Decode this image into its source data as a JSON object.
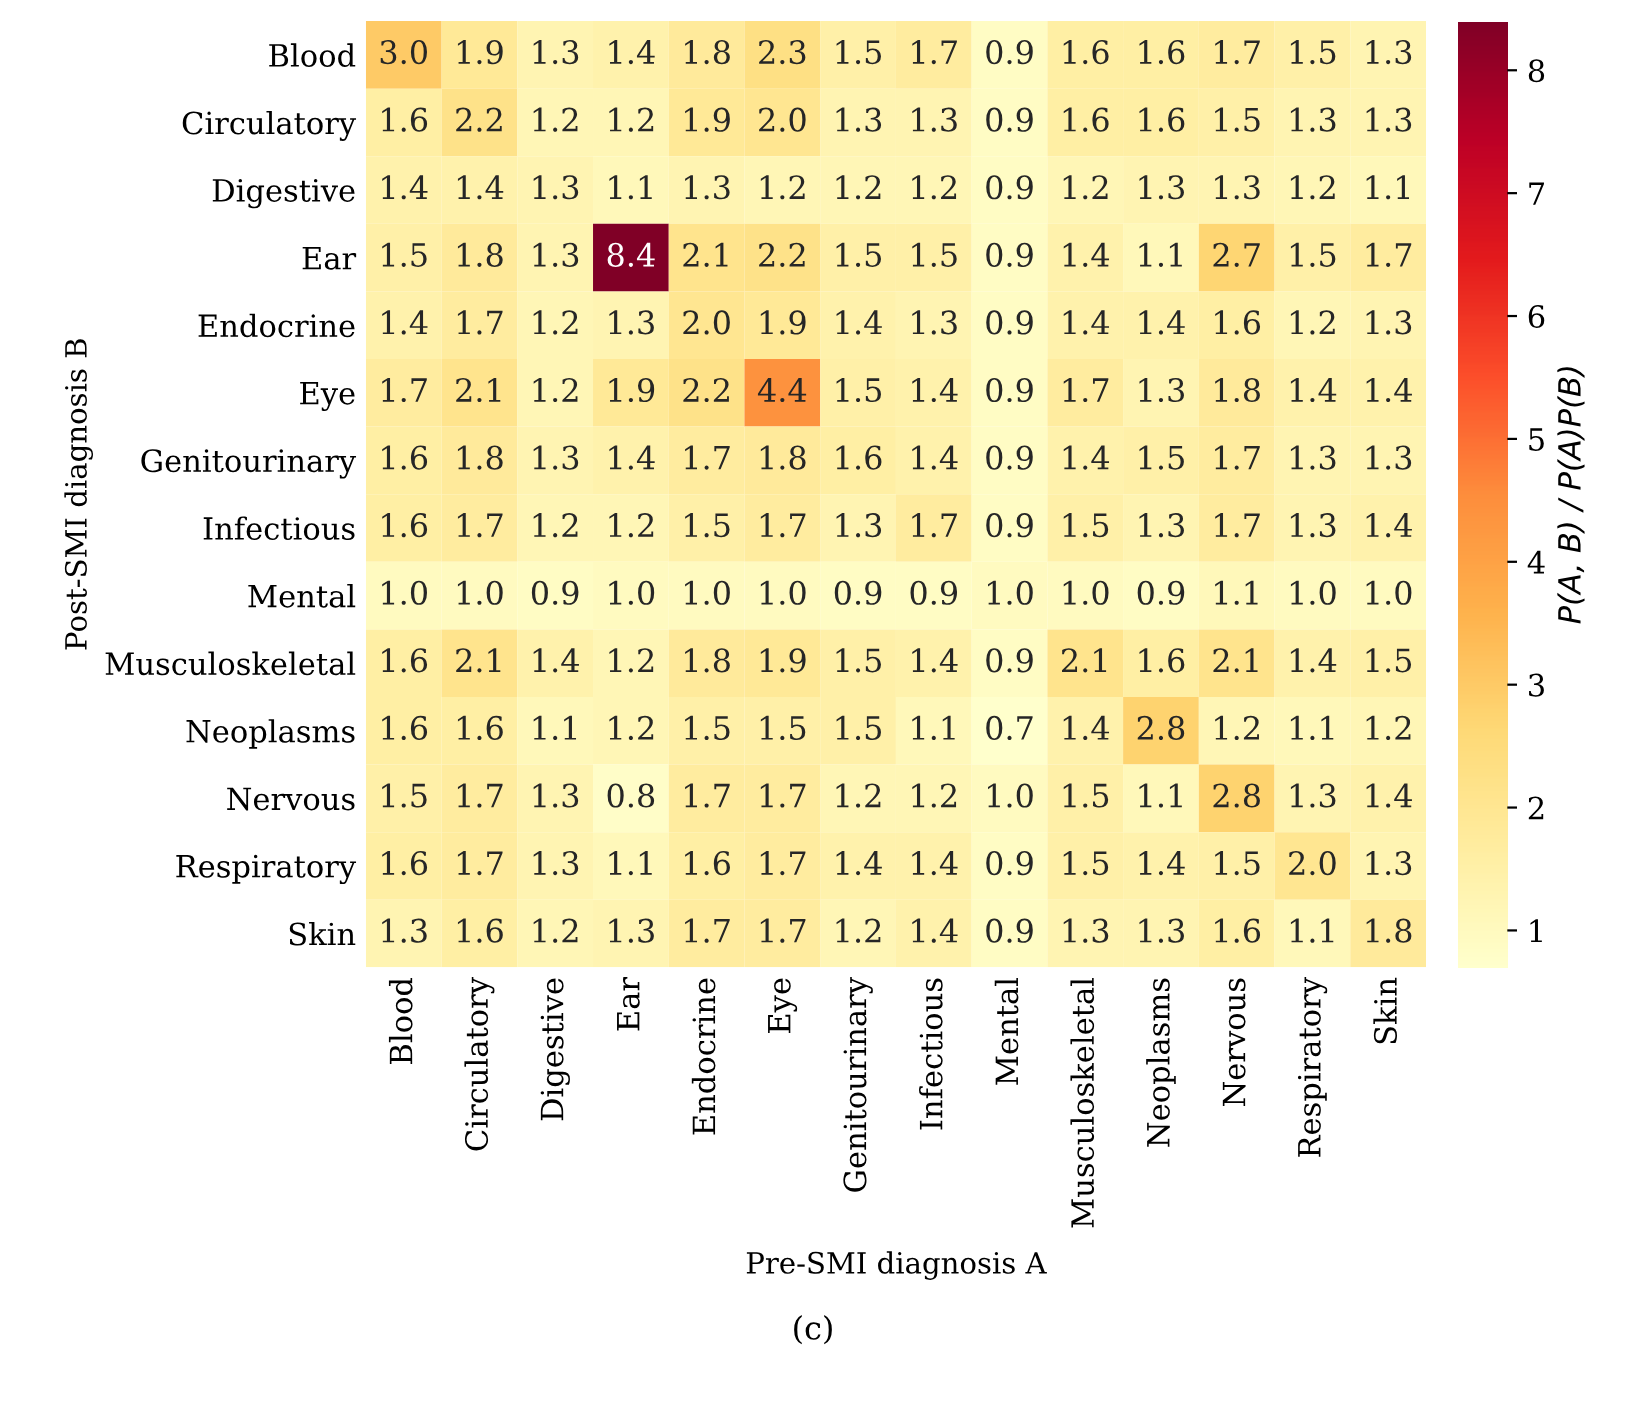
{
  "chart_data": {
    "type": "heatmap",
    "xlabel": "Pre-SMI diagnosis A",
    "ylabel": "Post-SMI diagnosis B",
    "clabel": "P(A, B) / P(A)P(B)",
    "annotations": [
      "(c)"
    ],
    "categories": [
      "Blood",
      "Circulatory",
      "Digestive",
      "Ear",
      "Endocrine",
      "Eye",
      "Genitourinary",
      "Infectious",
      "Mental",
      "Musculoskeletal",
      "Neoplasms",
      "Nervous",
      "Respiratory",
      "Skin"
    ],
    "y_categories": [
      "Blood",
      "Circulatory",
      "Digestive",
      "Ear",
      "Endocrine",
      "Eye",
      "Genitourinary",
      "Infectious",
      "Mental",
      "Musculoskeletal",
      "Neoplasms",
      "Nervous",
      "Respiratory",
      "Skin"
    ],
    "cells": [
      [
        3.0,
        1.9,
        1.3,
        1.4,
        1.8,
        2.3,
        1.5,
        1.7,
        0.9,
        1.6,
        1.6,
        1.7,
        1.5,
        1.3
      ],
      [
        1.6,
        2.2,
        1.2,
        1.2,
        1.9,
        2.0,
        1.3,
        1.3,
        0.9,
        1.6,
        1.6,
        1.5,
        1.3,
        1.3
      ],
      [
        1.4,
        1.4,
        1.3,
        1.1,
        1.3,
        1.2,
        1.2,
        1.2,
        0.9,
        1.2,
        1.3,
        1.3,
        1.2,
        1.1
      ],
      [
        1.5,
        1.8,
        1.3,
        8.4,
        2.1,
        2.2,
        1.5,
        1.5,
        0.9,
        1.4,
        1.1,
        2.7,
        1.5,
        1.7
      ],
      [
        1.4,
        1.7,
        1.2,
        1.3,
        2.0,
        1.9,
        1.4,
        1.3,
        0.9,
        1.4,
        1.4,
        1.6,
        1.2,
        1.3
      ],
      [
        1.7,
        2.1,
        1.2,
        1.9,
        2.2,
        4.4,
        1.5,
        1.4,
        0.9,
        1.7,
        1.3,
        1.8,
        1.4,
        1.4
      ],
      [
        1.6,
        1.8,
        1.3,
        1.4,
        1.7,
        1.8,
        1.6,
        1.4,
        0.9,
        1.4,
        1.5,
        1.7,
        1.3,
        1.3
      ],
      [
        1.6,
        1.7,
        1.2,
        1.2,
        1.5,
        1.7,
        1.3,
        1.7,
        0.9,
        1.5,
        1.3,
        1.7,
        1.3,
        1.4
      ],
      [
        1.0,
        1.0,
        0.9,
        1.0,
        1.0,
        1.0,
        0.9,
        0.9,
        1.0,
        1.0,
        0.9,
        1.1,
        1.0,
        1.0
      ],
      [
        1.6,
        2.1,
        1.4,
        1.2,
        1.8,
        1.9,
        1.5,
        1.4,
        0.9,
        2.1,
        1.6,
        2.1,
        1.4,
        1.5
      ],
      [
        1.6,
        1.6,
        1.1,
        1.2,
        1.5,
        1.5,
        1.5,
        1.1,
        0.7,
        1.4,
        2.8,
        1.2,
        1.1,
        1.2
      ],
      [
        1.5,
        1.7,
        1.3,
        0.8,
        1.7,
        1.7,
        1.2,
        1.2,
        1.0,
        1.5,
        1.1,
        2.8,
        1.3,
        1.4
      ],
      [
        1.6,
        1.7,
        1.3,
        1.1,
        1.6,
        1.7,
        1.4,
        1.4,
        0.9,
        1.5,
        1.4,
        1.5,
        2.0,
        1.3
      ],
      [
        1.3,
        1.6,
        1.2,
        1.3,
        1.7,
        1.7,
        1.2,
        1.4,
        0.9,
        1.3,
        1.3,
        1.6,
        1.1,
        1.8
      ]
    ],
    "cell_labels": [
      [
        "3.0",
        "1.9",
        "1.3",
        "1.4",
        "1.8",
        "2.3",
        "1.5",
        "1.7",
        "0.9",
        "1.6",
        "1.6",
        "1.7",
        "1.5",
        "1.3"
      ],
      [
        "1.6",
        "2.2",
        "1.2",
        "1.2",
        "1.9",
        "2.0",
        "1.3",
        "1.3",
        "0.9",
        "1.6",
        "1.6",
        "1.5",
        "1.3",
        "1.3"
      ],
      [
        "1.4",
        "1.4",
        "1.3",
        "1.1",
        "1.3",
        "1.2",
        "1.2",
        "1.2",
        "0.9",
        "1.2",
        "1.3",
        "1.3",
        "1.2",
        "1.1"
      ],
      [
        "1.5",
        "1.8",
        "1.3",
        "8.4",
        "2.1",
        "2.2",
        "1.5",
        "1.5",
        "0.9",
        "1.4",
        "1.1",
        "2.7",
        "1.5",
        "1.7"
      ],
      [
        "1.4",
        "1.7",
        "1.2",
        "1.3",
        "2.0",
        "1.9",
        "1.4",
        "1.3",
        "0.9",
        "1.4",
        "1.4",
        "1.6",
        "1.2",
        "1.3"
      ],
      [
        "1.7",
        "2.1",
        "1.2",
        "1.9",
        "2.2",
        "4.4",
        "1.5",
        "1.4",
        "0.9",
        "1.7",
        "1.3",
        "1.8",
        "1.4",
        "1.4"
      ],
      [
        "1.6",
        "1.8",
        "1.3",
        "1.4",
        "1.7",
        "1.8",
        "1.6",
        "1.4",
        "0.9",
        "1.4",
        "1.5",
        "1.7",
        "1.3",
        "1.3"
      ],
      [
        "1.6",
        "1.7",
        "1.2",
        "1.2",
        "1.5",
        "1.7",
        "1.3",
        "1.7",
        "0.9",
        "1.5",
        "1.3",
        "1.7",
        "1.3",
        "1.4"
      ],
      [
        "1.0",
        "1.0",
        "0.9",
        "1.0",
        "1.0",
        "1.0",
        "0.9",
        "0.9",
        "1.0",
        "1.0",
        "0.9",
        "1.1",
        "1.0",
        "1.0"
      ],
      [
        "1.6",
        "2.1",
        "1.4",
        "1.2",
        "1.8",
        "1.9",
        "1.5",
        "1.4",
        "0.9",
        "2.1",
        "1.6",
        "2.1",
        "1.4",
        "1.5"
      ],
      [
        "1.6",
        "1.6",
        "1.1",
        "1.2",
        "1.5",
        "1.5",
        "1.5",
        "1.1",
        "0.7",
        "1.4",
        "2.8",
        "1.2",
        "1.1",
        "1.2"
      ],
      [
        "1.5",
        "1.7",
        "1.3",
        "0.8",
        "1.7",
        "1.7",
        "1.2",
        "1.2",
        "1.0",
        "1.5",
        "1.1",
        "2.8",
        "1.3",
        "1.4"
      ],
      [
        "1.6",
        "1.7",
        "1.3",
        "1.1",
        "1.6",
        "1.7",
        "1.4",
        "1.4",
        "0.9",
        "1.5",
        "1.4",
        "1.5",
        "2.0",
        "1.3"
      ],
      [
        "1.3",
        "1.6",
        "1.2",
        "1.3",
        "1.7",
        "1.7",
        "1.2",
        "1.4",
        "0.9",
        "1.3",
        "1.3",
        "1.6",
        "1.1",
        "1.8"
      ]
    ],
    "clim": [
      0.7,
      8.4
    ],
    "cticks": [
      1,
      2,
      3,
      4,
      5,
      6,
      7,
      8
    ]
  }
}
